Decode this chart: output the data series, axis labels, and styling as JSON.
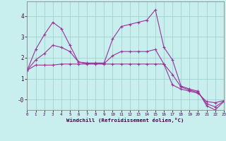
{
  "xlabel": "Windchill (Refroidissement éolien,°C)",
  "background_color": "#c8eeee",
  "grid_color": "#99cccc",
  "line_color": "#993399",
  "x_ticks": [
    0,
    1,
    2,
    3,
    4,
    5,
    6,
    7,
    8,
    9,
    10,
    11,
    12,
    13,
    14,
    15,
    16,
    17,
    18,
    19,
    20,
    21,
    22,
    23
  ],
  "y_ticks": [
    4,
    3,
    2,
    1,
    0
  ],
  "y_tick_labels": [
    "4",
    "3",
    "2",
    "1",
    "-0"
  ],
  "ylim": [
    -0.5,
    4.7
  ],
  "xlim": [
    0,
    23
  ],
  "series1_y": [
    1.4,
    1.65,
    1.65,
    1.65,
    1.7,
    1.7,
    1.7,
    1.7,
    1.7,
    1.7,
    1.7,
    1.7,
    1.7,
    1.7,
    1.7,
    1.7,
    1.7,
    0.7,
    0.5,
    0.4,
    0.3,
    -0.1,
    -0.15,
    -0.05
  ],
  "series2_y": [
    1.4,
    2.4,
    3.1,
    3.7,
    3.4,
    2.6,
    1.8,
    1.75,
    1.75,
    1.75,
    2.9,
    3.5,
    3.6,
    3.7,
    3.8,
    4.3,
    2.5,
    1.9,
    0.65,
    0.5,
    0.4,
    -0.3,
    -0.5,
    -0.1
  ],
  "series3_y": [
    1.4,
    1.9,
    2.2,
    2.6,
    2.5,
    2.3,
    1.8,
    1.72,
    1.72,
    1.72,
    2.1,
    2.3,
    2.3,
    2.3,
    2.3,
    2.4,
    1.7,
    1.2,
    0.6,
    0.45,
    0.35,
    -0.2,
    -0.35,
    -0.08
  ]
}
